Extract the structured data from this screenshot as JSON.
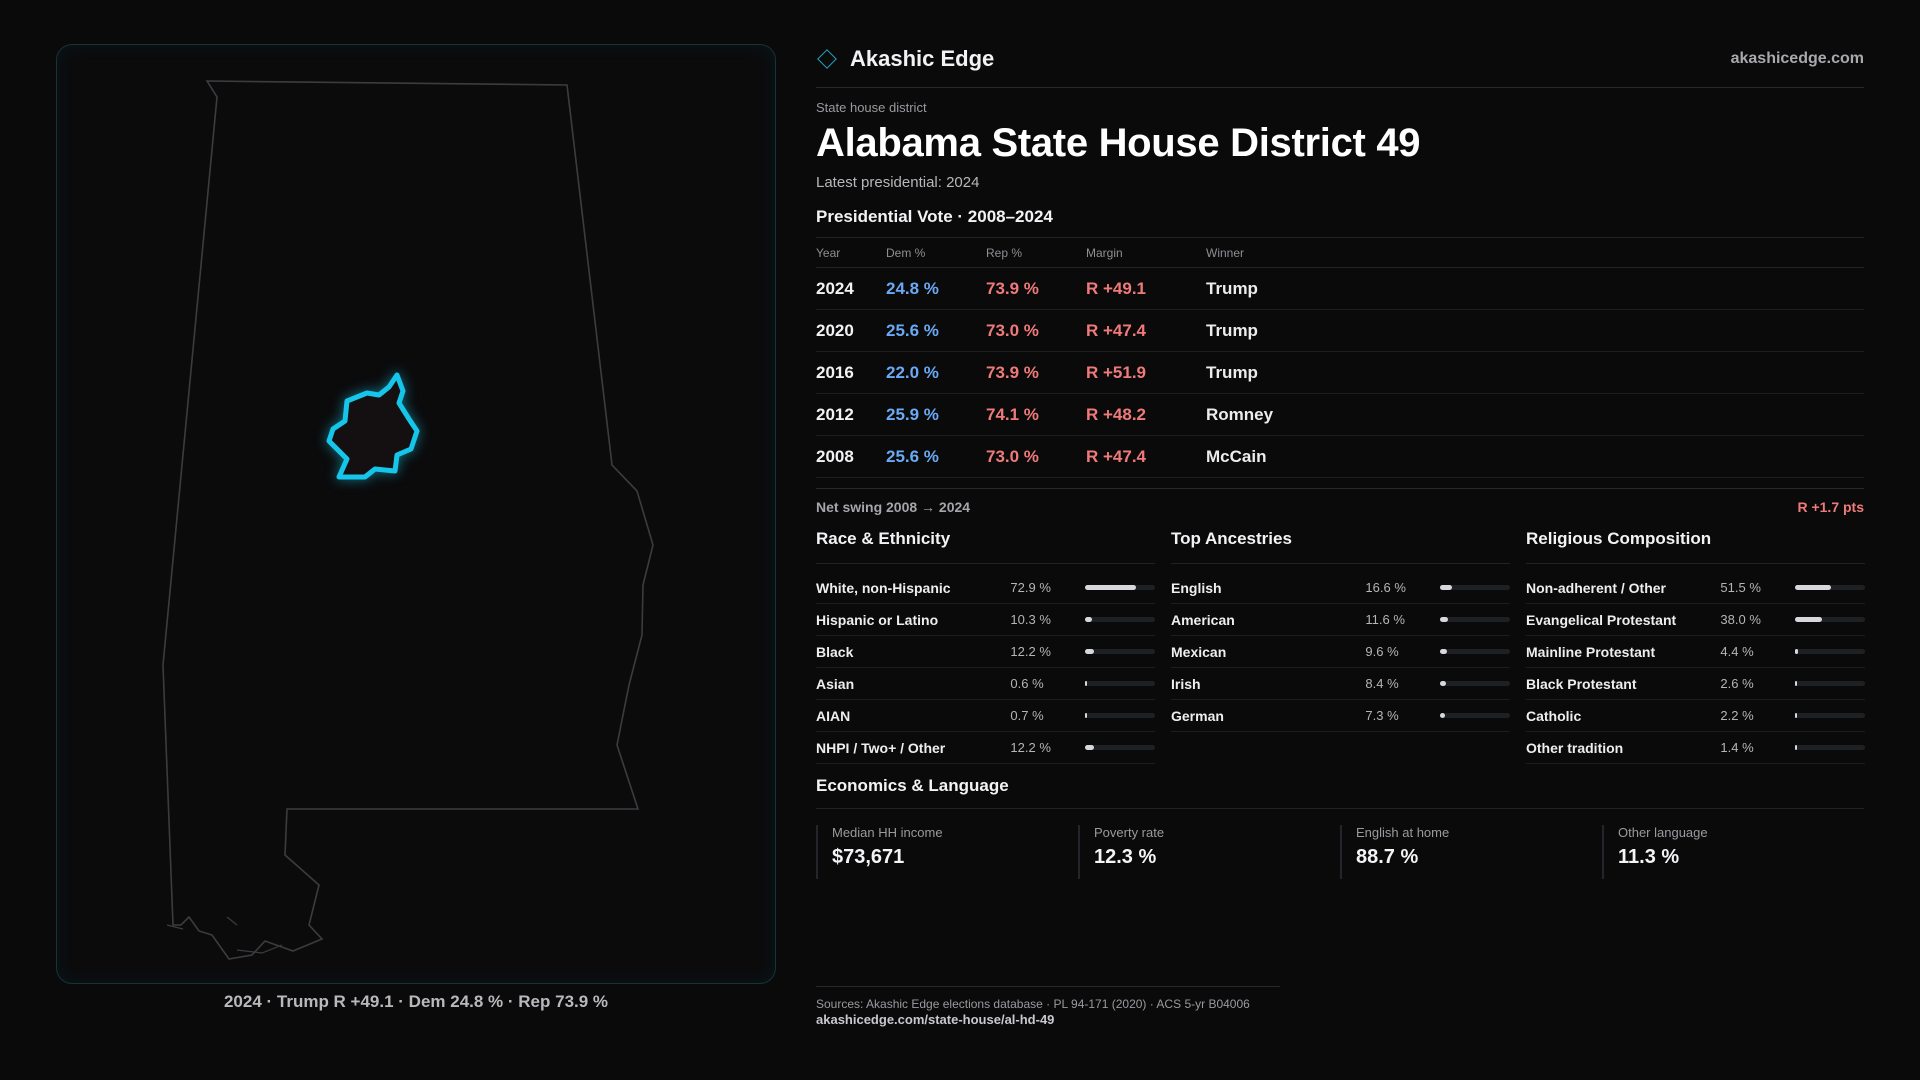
{
  "brand": {
    "name": "Akashic Edge",
    "url": "akashicedge.com",
    "accent": "#1fa7c3"
  },
  "header": {
    "kicker": "State house district",
    "title": "Alabama State House District 49",
    "subtitle": "Latest presidential: 2024"
  },
  "votes": {
    "heading": "Presidential Vote · 2008–2024",
    "columns": [
      "Year",
      "Dem %",
      "Rep %",
      "Margin",
      "Winner"
    ],
    "rows": [
      {
        "year": "2024",
        "dem": "24.8 %",
        "rep": "73.9 %",
        "margin": "R +49.1",
        "winner": "Trump"
      },
      {
        "year": "2020",
        "dem": "25.6 %",
        "rep": "73.0 %",
        "margin": "R +47.4",
        "winner": "Trump"
      },
      {
        "year": "2016",
        "dem": "22.0 %",
        "rep": "73.9 %",
        "margin": "R +51.9",
        "winner": "Trump"
      },
      {
        "year": "2012",
        "dem": "25.9 %",
        "rep": "74.1 %",
        "margin": "R +48.2",
        "winner": "Romney"
      },
      {
        "year": "2008",
        "dem": "25.6 %",
        "rep": "73.0 %",
        "margin": "R +47.4",
        "winner": "McCain"
      }
    ],
    "colors": {
      "dem": "#6aa9f5",
      "rep": "#f07a7a"
    }
  },
  "swing": {
    "label": "Net swing 2008 → 2024",
    "value": "R +1.7 pts"
  },
  "race": {
    "heading": "Race & Ethnicity",
    "items": [
      {
        "label": "White, non-Hispanic",
        "pct": "72.9 %",
        "value": 72.9
      },
      {
        "label": "Hispanic or Latino",
        "pct": "10.3 %",
        "value": 10.3
      },
      {
        "label": "Black",
        "pct": "12.2 %",
        "value": 12.2
      },
      {
        "label": "Asian",
        "pct": "0.6 %",
        "value": 0.6
      },
      {
        "label": "AIAN",
        "pct": "0.7 %",
        "value": 0.7
      },
      {
        "label": "NHPI / Two+ / Other",
        "pct": "12.2 %",
        "value": 12.2
      }
    ]
  },
  "ancestry": {
    "heading": "Top Ancestries",
    "items": [
      {
        "label": "English",
        "pct": "16.6 %",
        "value": 16.6
      },
      {
        "label": "American",
        "pct": "11.6 %",
        "value": 11.6
      },
      {
        "label": "Mexican",
        "pct": "9.6 %",
        "value": 9.6
      },
      {
        "label": "Irish",
        "pct": "8.4 %",
        "value": 8.4
      },
      {
        "label": "German",
        "pct": "7.3 %",
        "value": 7.3
      }
    ]
  },
  "religion": {
    "heading": "Religious Composition",
    "items": [
      {
        "label": "Non-adherent / Other",
        "pct": "51.5 %",
        "value": 51.5
      },
      {
        "label": "Evangelical Protestant",
        "pct": "38.0 %",
        "value": 38.0
      },
      {
        "label": "Mainline Protestant",
        "pct": "4.4 %",
        "value": 4.4
      },
      {
        "label": "Black Protestant",
        "pct": "2.6 %",
        "value": 2.6
      },
      {
        "label": "Catholic",
        "pct": "2.2 %",
        "value": 2.2
      },
      {
        "label": "Other tradition",
        "pct": "1.4 %",
        "value": 1.4
      }
    ]
  },
  "economics": {
    "heading": "Economics & Language",
    "items": [
      {
        "label": "Median HH income",
        "value": "$73,671"
      },
      {
        "label": "Poverty rate",
        "value": "12.3 %"
      },
      {
        "label": "English at home",
        "value": "88.7 %"
      },
      {
        "label": "Other language",
        "value": "11.3 %"
      }
    ]
  },
  "map": {
    "caption": "2024 · Trump R +49.1 · Dem 24.8 % · Rep 73.9 %",
    "highlight_color": "#16c6ea"
  },
  "sources": {
    "line1": "Sources: Akashic Edge elections database · PL 94-171 (2020) · ACS 5-yr B04006",
    "line2": "akashicedge.com/state-house/al-hd-49"
  }
}
